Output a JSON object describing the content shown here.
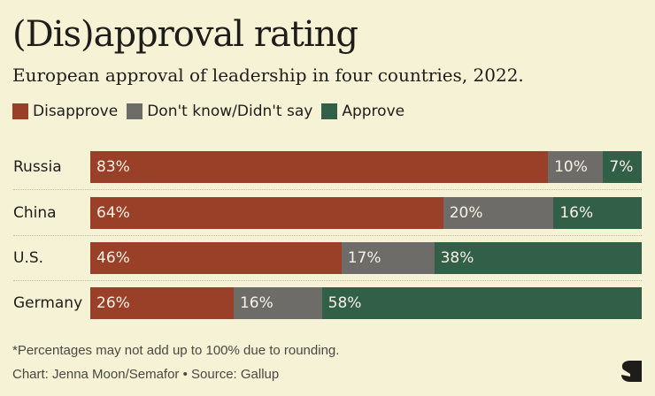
{
  "header": {
    "title": "(Dis)approval rating",
    "subtitle": "European approval of leadership in four countries, 2022."
  },
  "chart_data": {
    "type": "bar",
    "orientation": "horizontal",
    "stacked": true,
    "title": "(Dis)approval rating",
    "subtitle": "European approval of leadership in four countries, 2022.",
    "categories": [
      "Russia",
      "China",
      "U.S.",
      "Germany"
    ],
    "series": [
      {
        "name": "Disapprove",
        "color": "#9b4028",
        "values": [
          83,
          64,
          46,
          26
        ]
      },
      {
        "name": "Don't know/Didn't say",
        "color": "#6d6c69",
        "values": [
          10,
          20,
          17,
          16
        ]
      },
      {
        "name": "Approve",
        "color": "#325f48",
        "values": [
          7,
          16,
          38,
          58
        ]
      }
    ],
    "data_labels": [
      [
        "83%",
        "10%",
        "7%"
      ],
      [
        "64%",
        "20%",
        "16%"
      ],
      [
        "46%",
        "17%",
        "38%"
      ],
      [
        "26%",
        "16%",
        "58%"
      ]
    ],
    "xlabel": "",
    "ylabel": "",
    "xlim": [
      0,
      100
    ],
    "grid": false,
    "legend_position": "top-left"
  },
  "footer": {
    "note": "*Percentages may not add up to 100% due to rounding.",
    "credit": "Chart: Jenna Moon/Semafor • Source: Gallup",
    "logo_icon": "semafor-logo-icon"
  }
}
